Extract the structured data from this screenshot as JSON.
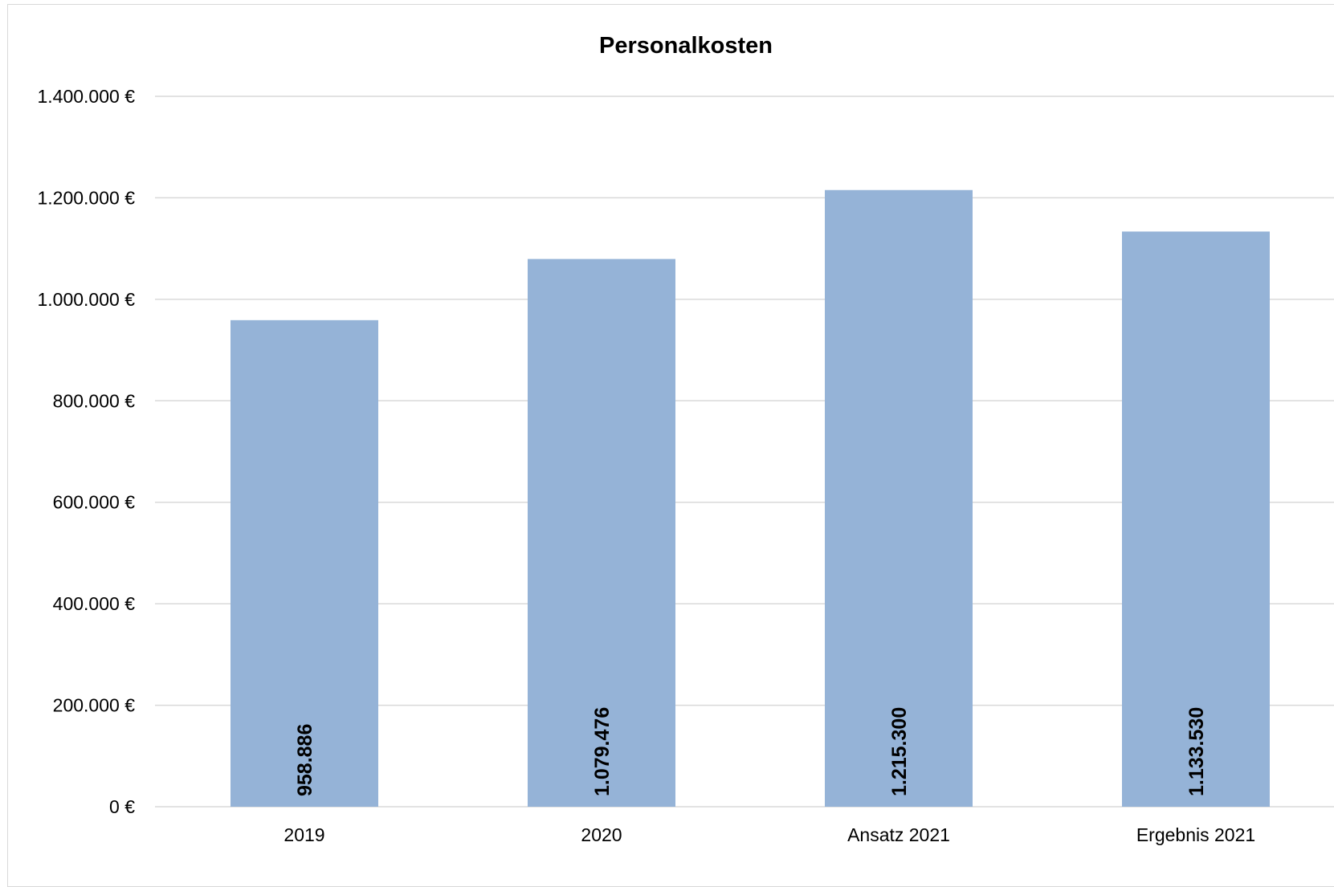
{
  "chart_data": {
    "type": "bar",
    "title": "Personalkosten",
    "xlabel": "",
    "ylabel": "",
    "categories": [
      "2019",
      "2020",
      "Ansatz 2021",
      "Ergebnis 2021"
    ],
    "values": [
      958886,
      1079476,
      1215300,
      1133530
    ],
    "data_labels": [
      "958.886",
      "1.079.476",
      "1.215.300",
      "1.133.530"
    ],
    "ylim": [
      0,
      1400000
    ],
    "y_ticks": [
      0,
      200000,
      400000,
      600000,
      800000,
      1000000,
      1200000,
      1400000
    ],
    "y_tick_labels": [
      "0 €",
      "200.000 €",
      "400.000 €",
      "600.000 €",
      "800.000 €",
      "1.000.000 €",
      "1.200.000 €",
      "1.400.000 €"
    ],
    "grid": true,
    "legend": "none",
    "bar_color": "#95b3d7"
  }
}
